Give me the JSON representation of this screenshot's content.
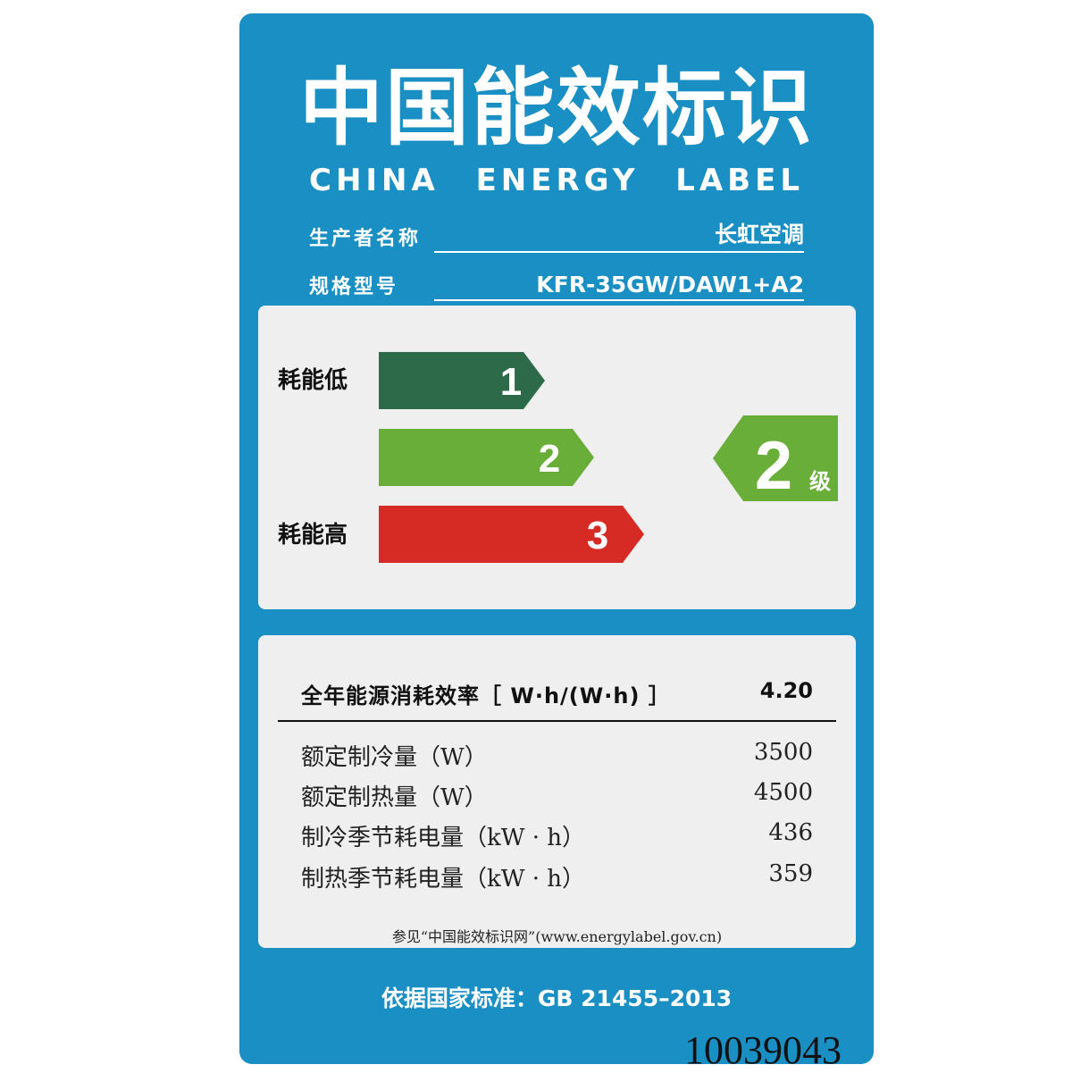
{
  "title_cn": "中国能效标识",
  "title_en": [
    "CHINA",
    "ENERGY",
    "LABEL"
  ],
  "info": {
    "manufacturer_label": "生产者名称",
    "manufacturer_value": "长虹空调",
    "model_label": "规格型号",
    "model_value": "KFR-35GW/DAW1+A2"
  },
  "grade_panel": {
    "low_label": "耗能低",
    "high_label": "耗能高",
    "arrows": [
      {
        "number": "1",
        "color": "#2d6a4a"
      },
      {
        "number": "2",
        "color": "#6aae3a"
      },
      {
        "number": "3",
        "color": "#d62a24"
      }
    ],
    "rating": {
      "number": "2",
      "suffix": "级",
      "color": "#6aae3a"
    }
  },
  "metrics": {
    "headline": {
      "label": "全年能源消耗效率［ W·h/(W·h) ］",
      "value": "4.20"
    },
    "rows": [
      {
        "label": "额定制冷量（W）",
        "value": "3500"
      },
      {
        "label": "额定制热量（W）",
        "value": "4500"
      },
      {
        "label": "制冷季节耗电量（kW · h）",
        "value": "436"
      },
      {
        "label": "制热季节耗电量（kW · h）",
        "value": "359"
      }
    ],
    "note": "参见“中国能效标识网”(www.energylabel.gov.cn)"
  },
  "standard": "依据国家标准：GB 21455–2013",
  "serial": "10039043",
  "colors": {
    "background": "#1a8fc4",
    "panel": "#efefef"
  }
}
